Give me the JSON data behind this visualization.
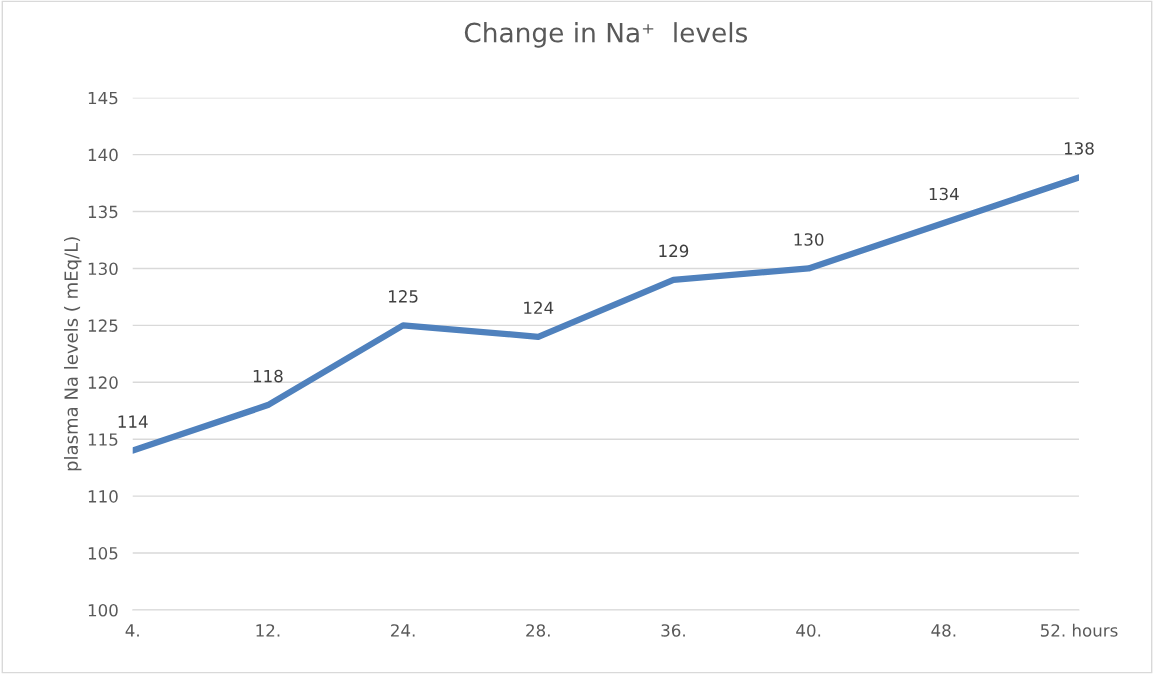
{
  "chart_data": {
    "type": "line",
    "title": "Change in Na⁺  levels",
    "ylabel": "plasma Na levels ( mEq/L)",
    "categories": [
      "4.",
      "12.",
      "24.",
      "28.",
      "36.",
      "40.",
      "48.",
      "52. hours"
    ],
    "series": [
      {
        "color": "#4f81bd",
        "values": [
          114,
          118,
          125,
          124,
          129,
          130,
          134,
          138
        ]
      }
    ],
    "ylim": [
      100,
      145
    ],
    "yticks": [
      100,
      105,
      110,
      115,
      120,
      125,
      130,
      135,
      140,
      145
    ],
    "grid": "y",
    "data_labels": true,
    "marker": "none",
    "line_style": "solid",
    "legend": false
  }
}
